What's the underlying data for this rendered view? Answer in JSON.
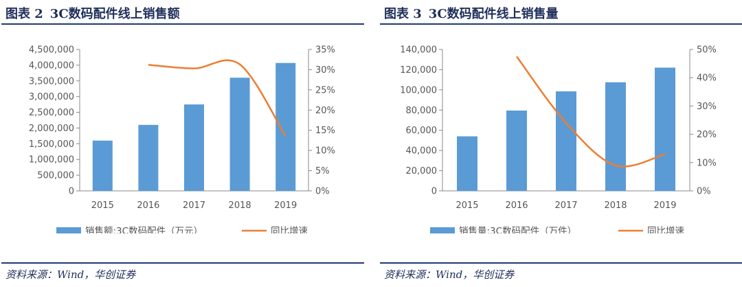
{
  "charts": [
    {
      "figure_no": "图表 2",
      "title": "3C数码配件线上销售额",
      "source": "资料来源：Wind，华创证券",
      "legend_bar": "销售额:3C数码配件（万元）",
      "legend_line": "同比增速",
      "bar_color": "#5b9bd5",
      "line_color": "#ed7d31"
    },
    {
      "figure_no": "图表 3",
      "title": "3C数码配件线上销售量",
      "source": "资料来源：Wind，华创证券",
      "legend_bar": "销售量:3C数码配件（万件）",
      "legend_line": "同比增速",
      "bar_color": "#5b9bd5",
      "line_color": "#ed7d31"
    }
  ],
  "chart_data": [
    {
      "type": "bar",
      "categories": [
        "2015",
        "2016",
        "2017",
        "2018",
        "2019"
      ],
      "series": [
        {
          "name": "销售额:3C数码配件（万元）",
          "type": "bar",
          "axis": "left",
          "values": [
            1600000,
            2100000,
            2750000,
            3600000,
            4070000
          ]
        },
        {
          "name": "同比增速",
          "type": "line",
          "axis": "right",
          "values": [
            null,
            31.2,
            30.3,
            31.3,
            13.5
          ]
        }
      ],
      "y_left": {
        "min": 0,
        "max": 4500000,
        "ticks": [
          "0",
          "500,000",
          "1,000,000",
          "1,500,000",
          "2,000,000",
          "2,500,000",
          "3,000,000",
          "3,500,000",
          "4,000,000",
          "4,500,000"
        ]
      },
      "y_right": {
        "min": 0,
        "max": 35,
        "ticks": [
          "0%",
          "5%",
          "10%",
          "15%",
          "20%",
          "25%",
          "30%",
          "35%"
        ]
      },
      "grid": false,
      "legend_position": "bottom"
    },
    {
      "type": "bar",
      "categories": [
        "2015",
        "2016",
        "2017",
        "2018",
        "2019"
      ],
      "series": [
        {
          "name": "销售量:3C数码配件（万件）",
          "type": "bar",
          "axis": "left",
          "values": [
            54000,
            79500,
            98500,
            107500,
            122000
          ]
        },
        {
          "name": "同比增速",
          "type": "line",
          "axis": "right",
          "values": [
            null,
            47.5,
            24,
            9,
            13
          ]
        }
      ],
      "y_left": {
        "min": 0,
        "max": 140000,
        "ticks": [
          "0",
          "20,000",
          "40,000",
          "60,000",
          "80,000",
          "100,000",
          "120,000",
          "140,000"
        ]
      },
      "y_right": {
        "min": 0,
        "max": 50,
        "ticks": [
          "0%",
          "10%",
          "20%",
          "30%",
          "40%",
          "50%"
        ]
      },
      "grid": false,
      "legend_position": "bottom"
    }
  ]
}
